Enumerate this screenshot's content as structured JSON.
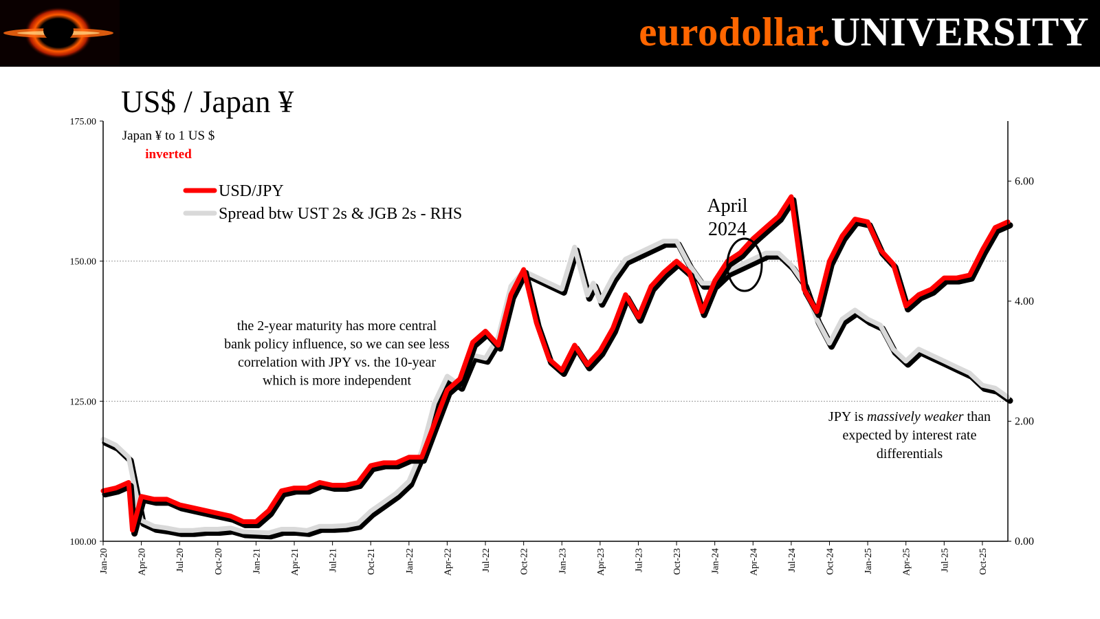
{
  "header": {
    "brand_part1": "eurodollar.",
    "brand_part2": "UNIVERSITY",
    "brand_color": "#ff6600",
    "logo_icon": "black-hole-icon"
  },
  "slide_title": "US$ / Japan ¥",
  "chart_data": {
    "type": "line",
    "y_left_lim": [
      100,
      175
    ],
    "y_left_ticks": [
      "100.00",
      "125.00",
      "150.00",
      "175.00"
    ],
    "y_right_lim": [
      0,
      7
    ],
    "y_right_ticks": [
      "0.00",
      "2.00",
      "4.00",
      "6.00"
    ],
    "y_left_inverted_note": "Japan ¥ to 1 US $",
    "inverted_label": "inverted",
    "x_lim": [
      "2020-01",
      "2025-12"
    ],
    "x_tick_labels": [
      "Jan-20",
      "Apr-20",
      "Jul-20",
      "Oct-20",
      "Jan-21",
      "Apr-21",
      "Jul-21",
      "Oct-21",
      "Jan-22",
      "Apr-22",
      "Jul-22",
      "Oct-22",
      "Jan-23",
      "Apr-23",
      "Jul-23",
      "Oct-23",
      "Jan-24",
      "Apr-24",
      "Jul-24",
      "Oct-24",
      "Jan-25",
      "Apr-25",
      "Jul-25",
      "Oct-25"
    ],
    "gridlines_y": [
      125,
      150
    ],
    "legend_placement": "top-left",
    "series": [
      {
        "name": "USD/JPY",
        "axis": "left",
        "color": "#ff0000",
        "x": [
          "2020-01",
          "2020-02",
          "2020-03",
          "2020-03-10",
          "2020-04",
          "2020-05",
          "2020-06",
          "2020-07",
          "2020-08",
          "2020-09",
          "2020-10",
          "2020-11",
          "2020-12",
          "2021-01",
          "2021-02",
          "2021-03",
          "2021-04",
          "2021-05",
          "2021-06",
          "2021-07",
          "2021-08",
          "2021-09",
          "2021-10",
          "2021-11",
          "2021-12",
          "2022-01",
          "2022-02",
          "2022-03",
          "2022-04",
          "2022-05",
          "2022-06",
          "2022-07",
          "2022-08",
          "2022-09",
          "2022-10",
          "2022-11",
          "2022-12",
          "2023-01",
          "2023-02",
          "2023-03",
          "2023-04",
          "2023-05",
          "2023-06",
          "2023-07",
          "2023-08",
          "2023-09",
          "2023-10",
          "2023-11",
          "2023-12",
          "2024-01",
          "2024-02",
          "2024-03",
          "2024-04",
          "2024-05",
          "2024-06",
          "2024-07",
          "2024-08",
          "2024-09",
          "2024-10",
          "2024-11",
          "2024-12",
          "2025-01",
          "2025-02",
          "2025-03",
          "2025-04",
          "2025-05",
          "2025-06",
          "2025-07",
          "2025-08",
          "2025-09",
          "2025-10",
          "2025-11",
          "2025-12"
        ],
        "values": [
          109,
          109.5,
          110.5,
          102,
          108,
          107.5,
          107.5,
          106.5,
          106,
          105.5,
          105,
          104.5,
          103.5,
          103.5,
          105.5,
          109,
          109.5,
          109.5,
          110.5,
          110,
          110,
          110.5,
          113.5,
          114,
          114,
          115,
          115,
          121,
          127,
          129,
          135.5,
          137.5,
          135,
          144,
          148.5,
          139,
          132.5,
          130.5,
          135,
          131.5,
          134,
          138,
          144,
          140,
          145.5,
          148,
          150,
          148,
          141,
          146.5,
          150,
          151.5,
          154,
          156,
          158,
          161.5,
          145,
          141,
          150,
          154.5,
          157.5,
          157,
          152,
          149.5,
          142,
          144,
          145,
          147,
          147,
          147.5,
          152,
          156,
          157
        ]
      },
      {
        "name": "Spread btw UST 2s & JGB 2s - RHS",
        "axis": "right",
        "color": "#d9d9d9",
        "x": [
          "2020-01",
          "2020-02",
          "2020-03",
          "2020-04",
          "2020-05",
          "2020-06",
          "2020-07",
          "2020-08",
          "2020-09",
          "2020-10",
          "2020-11",
          "2020-12",
          "2021-01",
          "2021-02",
          "2021-03",
          "2021-04",
          "2021-05",
          "2021-06",
          "2021-07",
          "2021-08",
          "2021-09",
          "2021-10",
          "2021-11",
          "2021-12",
          "2022-01",
          "2022-02",
          "2022-03",
          "2022-04",
          "2022-05",
          "2022-06",
          "2022-07",
          "2022-08",
          "2022-09",
          "2022-10",
          "2022-11",
          "2022-12",
          "2023-01",
          "2023-02",
          "2023-03",
          "2023-03-15",
          "2023-04",
          "2023-05",
          "2023-06",
          "2023-07",
          "2023-08",
          "2023-09",
          "2023-10",
          "2023-11",
          "2023-12",
          "2024-01",
          "2024-02",
          "2024-03",
          "2024-04",
          "2024-05",
          "2024-06",
          "2024-07",
          "2024-08",
          "2024-09",
          "2024-10",
          "2024-11",
          "2024-12",
          "2025-01",
          "2025-02",
          "2025-03",
          "2025-04",
          "2025-05",
          "2025-06",
          "2025-07",
          "2025-08",
          "2025-09",
          "2025-10",
          "2025-11",
          "2025-12"
        ],
        "values": [
          1.7,
          1.6,
          1.4,
          0.35,
          0.25,
          0.22,
          0.18,
          0.18,
          0.2,
          0.2,
          0.22,
          0.16,
          0.15,
          0.14,
          0.2,
          0.2,
          0.18,
          0.25,
          0.25,
          0.26,
          0.3,
          0.5,
          0.65,
          0.8,
          1.0,
          1.5,
          2.3,
          2.75,
          2.6,
          3.1,
          3.05,
          3.4,
          4.25,
          4.5,
          4.4,
          4.3,
          4.2,
          4.9,
          4.1,
          4.3,
          4.0,
          4.4,
          4.7,
          4.8,
          4.9,
          5.0,
          5.0,
          4.6,
          4.3,
          4.3,
          4.5,
          4.6,
          4.7,
          4.8,
          4.8,
          4.6,
          4.3,
          3.7,
          3.3,
          3.7,
          3.85,
          3.7,
          3.6,
          3.2,
          3.0,
          3.2,
          3.1,
          3.0,
          2.9,
          2.8,
          2.6,
          2.55,
          2.4
        ]
      }
    ],
    "annotations": {
      "april_label": "April\n2024",
      "policy_note": "the 2-year maturity has more central\nbank policy influence, so we can see less\ncorrelation with JPY vs. the 10-year\nwhich is more independent",
      "jpy_note_pre": "JPY is ",
      "jpy_note_em": "massively weaker",
      "jpy_note_post": " than",
      "jpy_note_line2": "expected by interest rate",
      "jpy_note_line3": "differentials"
    }
  }
}
